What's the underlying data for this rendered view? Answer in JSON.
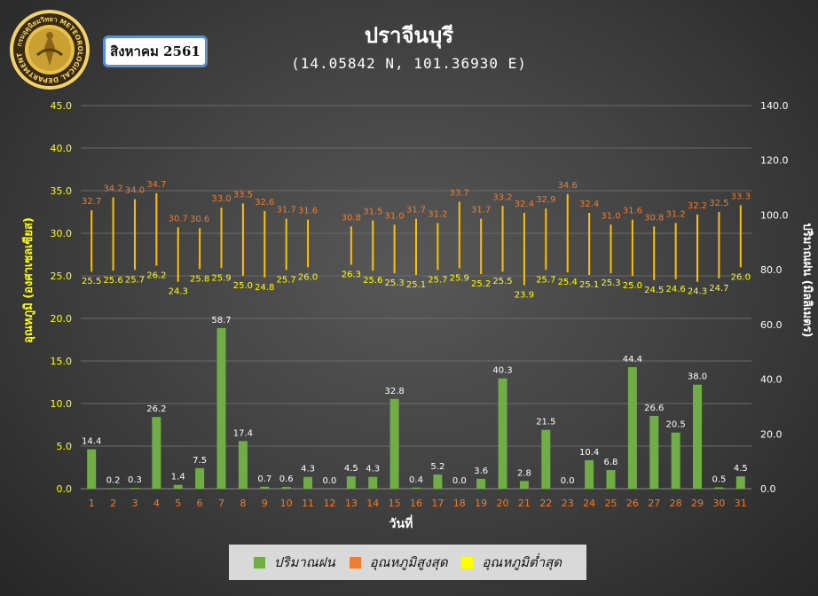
{
  "header": {
    "logo_text": "กรมอุตุนิยมวิทยา METEOROLOGICAL DEPARTMENT",
    "month_label": "สิงหาคม 2561",
    "title": "ปราจีนบุรี",
    "subtitle": "(14.05842 N, 101.36930 E)"
  },
  "colors": {
    "rain": "#70ad47",
    "tmax_label": "#ed7d31",
    "range_line": "#ffc000",
    "tmin_label": "#ffff00",
    "axis_text": "#ffff00",
    "right_axis_text": "#ffffff",
    "day_text": "#ed7d31",
    "grid": "#6a6a6a"
  },
  "chart_data": {
    "type": "bar",
    "x": [
      1,
      2,
      3,
      4,
      5,
      6,
      7,
      8,
      9,
      10,
      11,
      12,
      13,
      14,
      15,
      16,
      17,
      18,
      19,
      20,
      21,
      22,
      23,
      24,
      25,
      26,
      27,
      28,
      29,
      30,
      31
    ],
    "xlabel": "วันที่",
    "ylabel_left": "อุณหภูมิ (องศาเซลเซียส)",
    "ylabel_right": "ปริมาณฝน (มิลลิเมตร)",
    "ylim_left": [
      0,
      45
    ],
    "ylim_right": [
      0,
      140
    ],
    "yticks_left": [
      "0.0",
      "5.0",
      "10.0",
      "15.0",
      "20.0",
      "25.0",
      "30.0",
      "35.0",
      "40.0",
      "45.0"
    ],
    "yticks_right": [
      "0.0",
      "20.0",
      "40.0",
      "60.0",
      "80.0",
      "100.0",
      "120.0",
      "140.0"
    ],
    "grid": true,
    "legend_position": "bottom",
    "series": [
      {
        "name": "ปริมาณฝน",
        "type": "bar",
        "axis": "right",
        "values": [
          14.4,
          0.2,
          0.3,
          26.2,
          1.4,
          7.5,
          58.7,
          17.4,
          0.7,
          0.6,
          4.3,
          0.0,
          4.5,
          4.3,
          32.8,
          0.4,
          5.2,
          0.0,
          3.6,
          40.3,
          2.8,
          21.5,
          0.0,
          10.4,
          6.8,
          44.4,
          26.6,
          20.5,
          38.0,
          0.5,
          4.5
        ]
      },
      {
        "name": "อุณหภูมิสูงสุด",
        "type": "range-top",
        "axis": "left",
        "values": [
          32.7,
          34.2,
          34.0,
          34.7,
          30.7,
          30.6,
          33.0,
          33.5,
          32.6,
          31.7,
          31.6,
          null,
          30.8,
          31.5,
          31.0,
          31.7,
          31.2,
          33.7,
          31.7,
          33.2,
          32.4,
          32.9,
          34.6,
          32.4,
          31.0,
          31.6,
          30.8,
          31.2,
          32.2,
          32.5,
          33.3
        ]
      },
      {
        "name": "อุณหภูมิต่ำสุด",
        "type": "range-bottom",
        "axis": "left",
        "values": [
          25.5,
          25.6,
          25.7,
          26.2,
          24.3,
          25.8,
          25.9,
          25.0,
          24.8,
          25.7,
          26.0,
          null,
          26.3,
          25.6,
          25.3,
          25.1,
          25.7,
          25.9,
          25.2,
          25.5,
          23.9,
          25.7,
          25.4,
          25.1,
          25.3,
          25.0,
          24.5,
          24.6,
          24.3,
          24.7,
          26.0
        ]
      }
    ]
  }
}
